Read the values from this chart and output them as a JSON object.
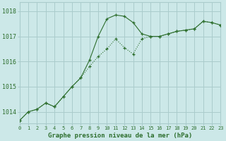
{
  "title": "Graphe pression niveau de la mer (hPa)",
  "bg_color": "#cce8e8",
  "grid_color": "#aacccc",
  "line_color": "#2d6e2d",
  "x_min": 0,
  "x_max": 23,
  "y_min": 1013.55,
  "y_max": 1018.35,
  "yticks": [
    1014,
    1015,
    1016,
    1017,
    1018
  ],
  "xticks": [
    0,
    1,
    2,
    3,
    4,
    5,
    6,
    7,
    8,
    9,
    10,
    11,
    12,
    13,
    14,
    15,
    16,
    17,
    18,
    19,
    20,
    21,
    22,
    23
  ],
  "series_dotted_x": [
    0,
    1,
    2,
    3,
    4,
    5,
    6,
    7,
    8,
    9,
    10,
    11,
    12,
    13,
    14,
    15,
    16,
    17,
    18,
    19,
    20,
    21,
    22,
    23
  ],
  "series_dotted_y": [
    1013.65,
    1014.0,
    1014.1,
    1014.35,
    1014.2,
    1014.6,
    1015.0,
    1015.35,
    1015.8,
    1016.2,
    1016.5,
    1016.9,
    1016.55,
    1016.3,
    1016.9,
    1017.0,
    1017.0,
    1017.1,
    1017.2,
    1017.25,
    1017.3,
    1017.6,
    1017.55,
    1017.45
  ],
  "series_peaked_x": [
    0,
    1,
    2,
    3,
    4,
    5,
    6,
    7,
    8,
    9,
    10,
    11,
    12,
    13,
    14,
    15,
    16,
    17,
    18,
    19,
    20,
    21,
    22,
    23
  ],
  "series_peaked_y": [
    1013.65,
    1014.0,
    1014.1,
    1014.35,
    1014.2,
    1014.6,
    1015.0,
    1015.35,
    1016.05,
    1017.0,
    1017.7,
    1017.85,
    1017.8,
    1017.55,
    1017.1,
    1017.0,
    1017.0,
    1017.1,
    1017.2,
    1017.25,
    1017.3,
    1017.6,
    1017.55,
    1017.45
  ]
}
